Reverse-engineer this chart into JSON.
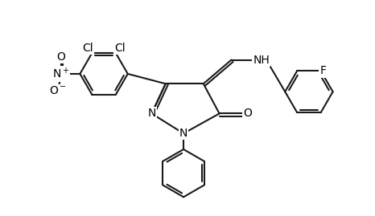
{
  "bg_color": "#ffffff",
  "line_color": "#1a1a1a",
  "line_width": 1.5,
  "font_size": 10,
  "fig_width": 4.66,
  "fig_height": 2.69,
  "dpi": 100,
  "xlim": [
    0,
    9.3
  ],
  "ylim": [
    0,
    5.38
  ]
}
